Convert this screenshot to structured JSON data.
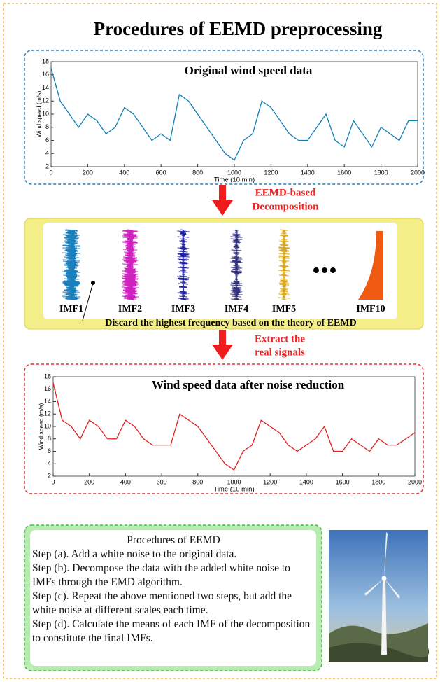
{
  "title": "Procedures of EEMD preprocessing",
  "charts": [
    {
      "type": "line",
      "title": "Original wind speed data",
      "xlabel": "Time (10 min)",
      "ylabel": "Wind speed (m/s)",
      "x": [
        0,
        50,
        100,
        150,
        200,
        250,
        300,
        350,
        400,
        450,
        500,
        550,
        600,
        650,
        700,
        750,
        800,
        850,
        900,
        950,
        1000,
        1050,
        1100,
        1150,
        1200,
        1250,
        1300,
        1350,
        1400,
        1450,
        1500,
        1550,
        1600,
        1650,
        1700,
        1750,
        1800,
        1850,
        1900,
        1950,
        2000
      ],
      "series": [
        {
          "color": "#0f7fb8",
          "values": [
            17,
            12,
            10,
            8,
            10,
            9,
            7,
            8,
            11,
            10,
            8,
            6,
            7,
            6,
            13,
            12,
            10,
            8,
            6,
            4,
            3,
            6,
            7,
            12,
            11,
            9,
            7,
            6,
            6,
            8,
            10,
            6,
            5,
            9,
            7,
            5,
            8,
            7,
            6,
            9,
            9
          ]
        }
      ],
      "xlim": [
        0,
        2000
      ],
      "ylim": [
        2,
        18
      ],
      "xticks": [
        0,
        200,
        400,
        600,
        800,
        1000,
        1200,
        1400,
        1600,
        1800,
        2000
      ],
      "yticks": [
        2,
        4,
        6,
        8,
        10,
        12,
        14,
        16,
        18
      ]
    },
    {
      "type": "line",
      "title": "Wind speed data after noise reduction",
      "xlabel": "Time (10 min)",
      "ylabel": "Wind speed (m/s)",
      "x": [
        0,
        50,
        100,
        150,
        200,
        250,
        300,
        350,
        400,
        450,
        500,
        550,
        600,
        650,
        700,
        750,
        800,
        850,
        900,
        950,
        1000,
        1050,
        1100,
        1150,
        1200,
        1250,
        1300,
        1350,
        1400,
        1450,
        1500,
        1550,
        1600,
        1650,
        1700,
        1750,
        1800,
        1850,
        1900,
        1950,
        2000
      ],
      "series": [
        {
          "color": "#e02020",
          "values": [
            17,
            11,
            10,
            8,
            11,
            10,
            8,
            8,
            11,
            10,
            8,
            7,
            7,
            7,
            12,
            11,
            10,
            8,
            6,
            4,
            3,
            6,
            7,
            11,
            10,
            9,
            7,
            6,
            7,
            8,
            10,
            6,
            6,
            8,
            7,
            6,
            8,
            7,
            7,
            8,
            9
          ]
        }
      ],
      "xlim": [
        0,
        2000
      ],
      "ylim": [
        2,
        18
      ],
      "xticks": [
        0,
        200,
        400,
        600,
        800,
        1000,
        1200,
        1400,
        1600,
        1800,
        2000
      ],
      "yticks": [
        2,
        4,
        6,
        8,
        10,
        12,
        14,
        16,
        18
      ]
    }
  ],
  "arrow1": [
    "EEMD-based",
    "Decomposition"
  ],
  "arrow2": [
    "Extract the",
    "real signals"
  ],
  "imfs": [
    "IMF1",
    "IMF2",
    "IMF3",
    "IMF4",
    "IMF5",
    "IMF10"
  ],
  "discard_note": "Discard the highest frequency based on the theory of EEMD",
  "procedures": {
    "title": "Procedures of EEMD",
    "steps": [
      "Step (a). Add a white noise to the original data.",
      "Step (b). Decompose the data with the added white noise to IMFs through the EMD algorithm.",
      "Step (c). Repeat the above mentioned two steps, but add the white noise at different scales each time.",
      "Step (d). Calculate the means of each IMF of the decomposition to constitute the final IMFs."
    ]
  }
}
